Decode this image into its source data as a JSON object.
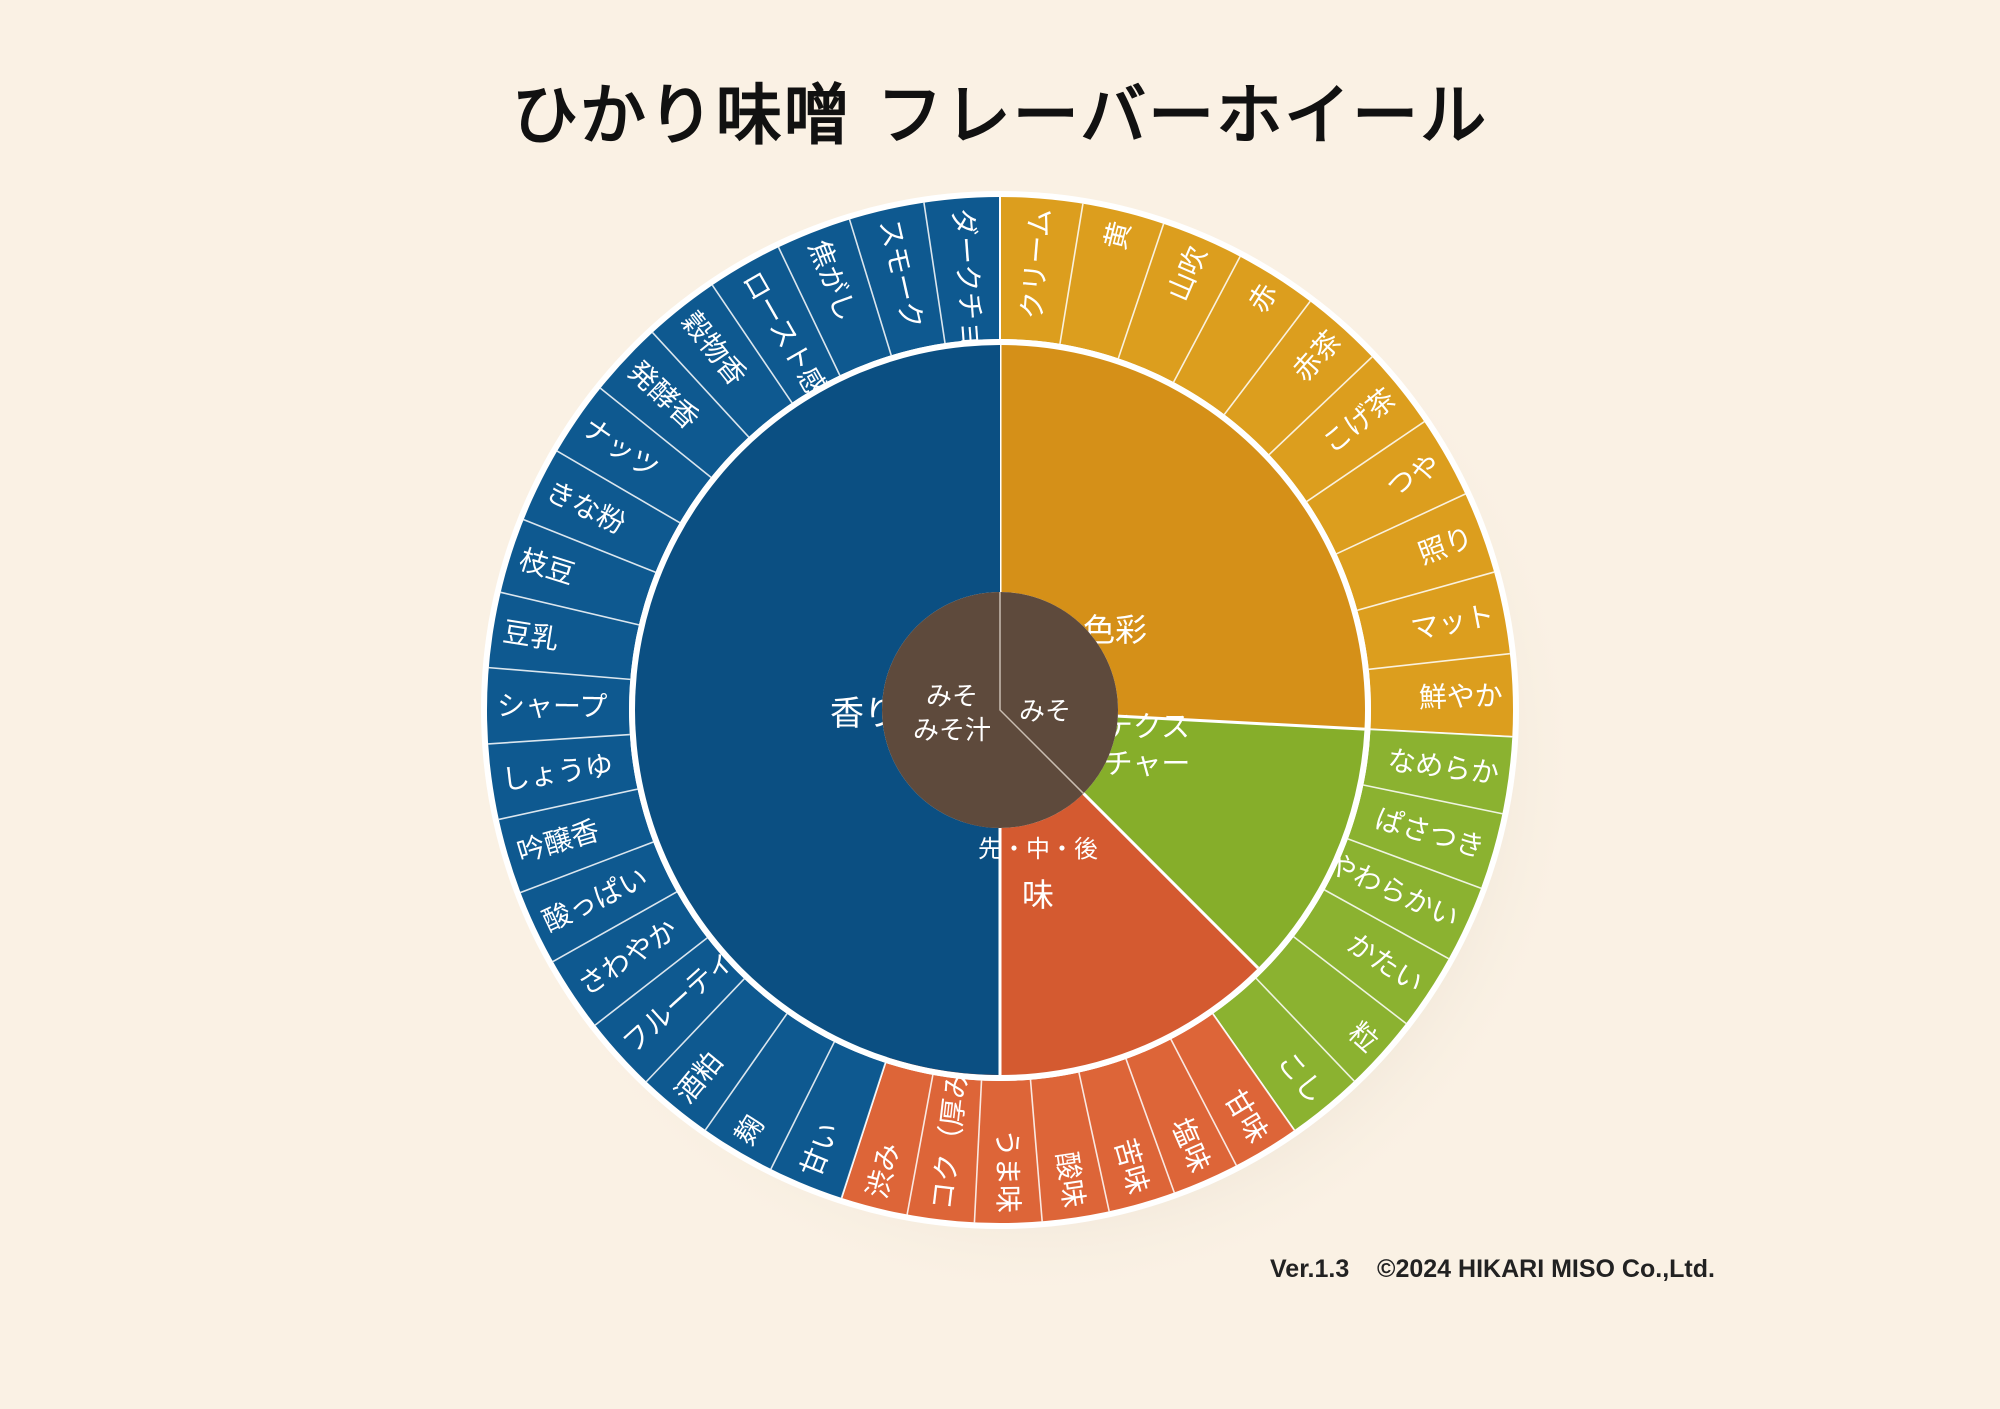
{
  "title": "ひかり味噌 フレーバーホイール",
  "footer": {
    "version": "Ver.1.3",
    "copyright": "©2024 HIKARI MISO Co.,Ltd."
  },
  "center": {
    "left_lines": [
      "みそ",
      "みそ汁"
    ],
    "right_label": "みそ"
  },
  "colors": {
    "background": "#faf1e4",
    "center": "#5e4a3c",
    "aroma": "#0e5990",
    "aroma_inner": "#0b4f82",
    "color": "#dc9e1e",
    "color_inner": "#d59018",
    "texture": "#8bb230",
    "texture_inner": "#86ae2a",
    "taste": "#dd6538",
    "taste_inner": "#d45a30"
  },
  "categories": [
    {
      "key": "color",
      "label_lines": [
        "色彩"
      ],
      "items": [
        "クリーム",
        "黄",
        "山吹",
        "赤",
        "赤茶",
        "こげ茶",
        "つや",
        "照り",
        "マット",
        "鮮やか"
      ]
    },
    {
      "key": "texture",
      "label_lines": [
        "テクス",
        "チャー"
      ],
      "items": [
        "なめらか",
        "ぱさつき",
        "やわらかい",
        "かたい",
        "粒",
        "こし"
      ]
    },
    {
      "key": "taste",
      "label_lines": [
        "先・中・後",
        "味"
      ],
      "items": [
        "甘味",
        "塩味",
        "苦味",
        "酸味",
        "うま味",
        "コク（厚み）",
        "渋み"
      ]
    },
    {
      "key": "aroma",
      "label_lines": [
        "香り"
      ],
      "items": [
        "甘い",
        "麹",
        "酒粕",
        "フルーティ",
        "さわやか",
        "酸っぱい",
        "吟醸香",
        "しょうゆ",
        "シャープ",
        "豆乳",
        "枝豆",
        "きな粉",
        "ナッツ",
        "発酵香",
        "穀物香",
        "ロースト感",
        "焦がし",
        "スモーク",
        "ダークチョコレート"
      ]
    }
  ]
}
